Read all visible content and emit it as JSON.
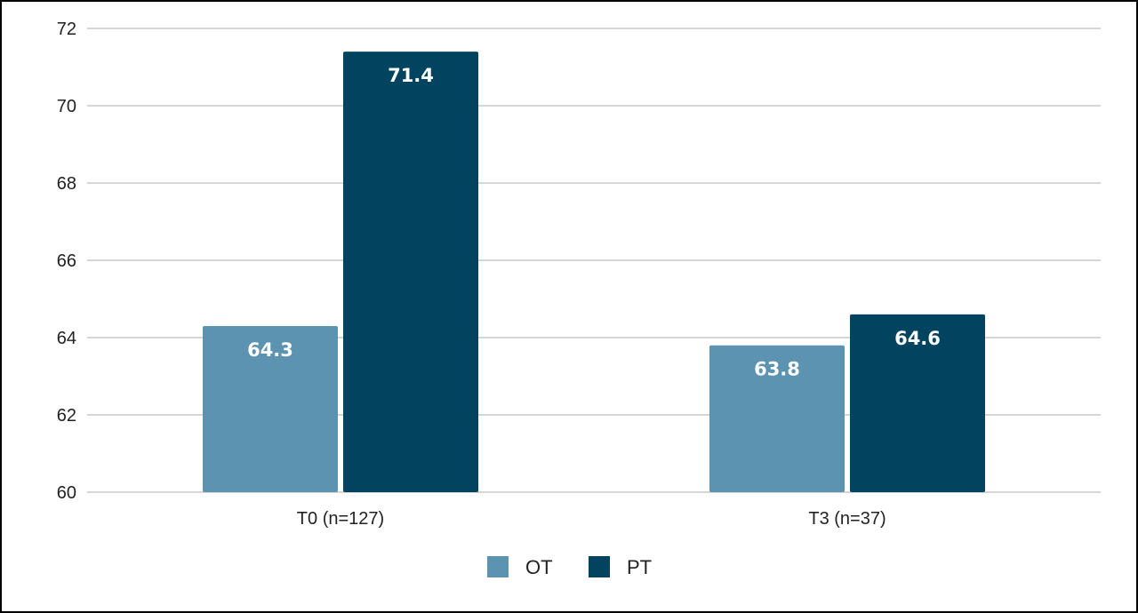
{
  "chart_data": {
    "type": "bar",
    "categories": [
      "T0 (n=127)",
      "T3 (n=37)"
    ],
    "series": [
      {
        "name": "OT",
        "values": [
          64.3,
          63.8
        ],
        "color": "#5b93b0"
      },
      {
        "name": "PT",
        "values": [
          71.4,
          64.6
        ],
        "color": "#024460"
      }
    ],
    "data_labels": [
      [
        "64.3",
        "63.8"
      ],
      [
        "71.4",
        "64.6"
      ]
    ],
    "ylim": [
      60,
      72
    ],
    "yticks": [
      60,
      62,
      64,
      66,
      68,
      70,
      72
    ],
    "grid": true,
    "legend": "bottom-center"
  }
}
